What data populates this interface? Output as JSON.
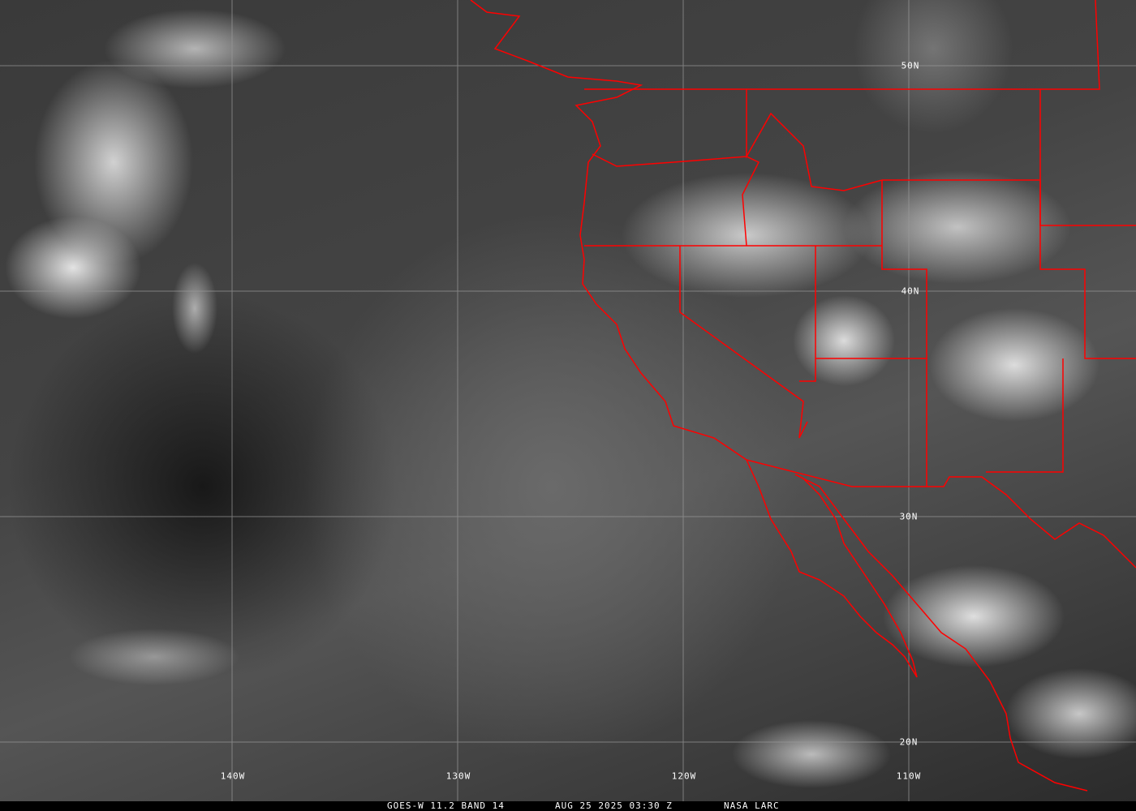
{
  "colors": {
    "grid": "#9a9a9a",
    "borders": "#ff0000",
    "label": "#ffffff"
  },
  "latitude_labels": [
    "50N",
    "40N",
    "30N",
    "20N"
  ],
  "longitude_labels": [
    "140W",
    "130W",
    "120W",
    "110W"
  ],
  "caption": {
    "product": "GOES-W 11.2 BAND 14",
    "datetime": "AUG 25 2025 03:30 Z",
    "source": "NASA LARC"
  }
}
